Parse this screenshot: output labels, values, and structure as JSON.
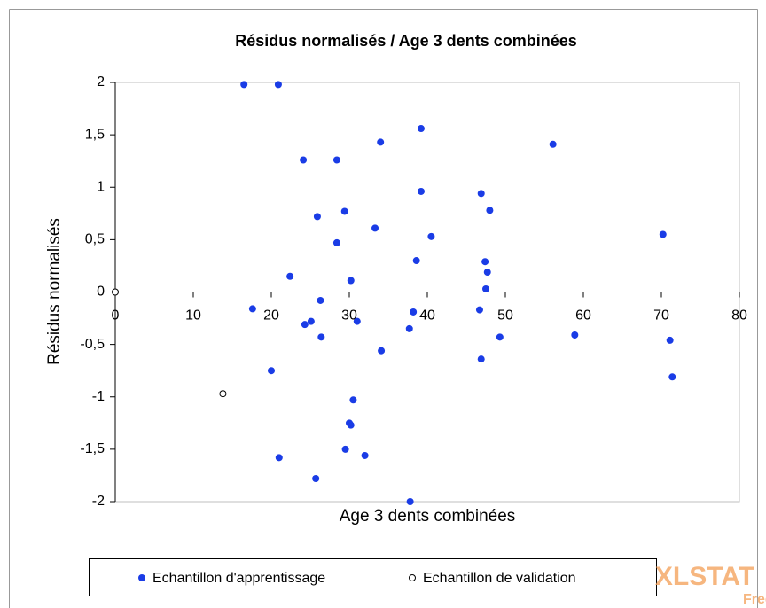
{
  "chart_data": {
    "type": "scatter",
    "title": "Résidus normalisés / Age 3 dents combinées",
    "x_label": "Age 3 dents combinées",
    "y_label": "Résidus normalisés",
    "xlim": [
      0,
      80
    ],
    "xticks": [
      0,
      10,
      20,
      30,
      40,
      50,
      60,
      70,
      80
    ],
    "ylim": [
      -2,
      2
    ],
    "yticks": [
      {
        "value": -2,
        "label": "-2"
      },
      {
        "value": -1.5,
        "label": "-1,5"
      },
      {
        "value": -1,
        "label": "-1"
      },
      {
        "value": -0.5,
        "label": "-0,5"
      },
      {
        "value": 0,
        "label": "0"
      },
      {
        "value": 0.5,
        "label": "0,5"
      },
      {
        "value": 1,
        "label": "1"
      },
      {
        "value": 1.5,
        "label": "1,5"
      },
      {
        "value": 2,
        "label": "2"
      }
    ],
    "series": [
      {
        "name": "Echantillon d'apprentissage",
        "color": "#1a3ce6",
        "hollow": false,
        "x": [
          16.5,
          20.9,
          24.1,
          28.4,
          34.0,
          39.2,
          56.1,
          39.2,
          46.9,
          48.0,
          29.4,
          25.9,
          33.3,
          40.5,
          28.4,
          70.2,
          38.6,
          47.4,
          47.7,
          22.4,
          30.2,
          47.5,
          26.3,
          17.6,
          38.2,
          46.7,
          25.1,
          24.3,
          31.0,
          37.7,
          26.4,
          49.3,
          58.9,
          71.1,
          34.1,
          46.9,
          20.0,
          71.4,
          30.5,
          30.0,
          30.2,
          29.5,
          32.0,
          21.0,
          25.7,
          37.8
        ],
        "values": [
          1.98,
          1.98,
          1.26,
          1.26,
          1.43,
          1.56,
          1.41,
          0.96,
          0.94,
          0.78,
          0.77,
          0.72,
          0.61,
          0.53,
          0.47,
          0.55,
          0.3,
          0.29,
          0.19,
          0.15,
          0.11,
          0.03,
          -0.08,
          -0.16,
          -0.19,
          -0.17,
          -0.28,
          -0.31,
          -0.28,
          -0.35,
          -0.43,
          -0.43,
          -0.41,
          -0.46,
          -0.56,
          -0.64,
          -0.75,
          -0.81,
          -1.03,
          -1.25,
          -1.27,
          -1.5,
          -1.56,
          -1.58,
          -1.78,
          -2.0
        ]
      },
      {
        "name": "Echantillon de validation",
        "color": "#000000",
        "hollow": true,
        "x": [
          13.8,
          0
        ],
        "values": [
          -0.97,
          0
        ]
      }
    ],
    "watermark": "XLSTAT",
    "watermark_sub": "Free"
  }
}
